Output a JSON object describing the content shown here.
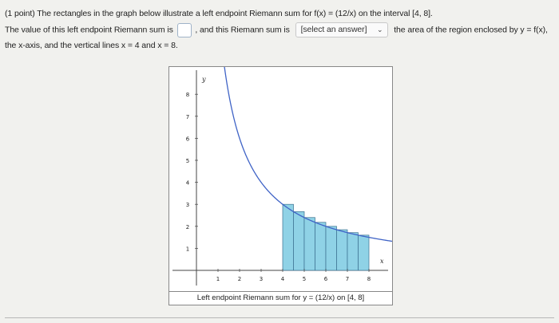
{
  "problem": {
    "line1": "(1 point) The rectangles in the graph below illustrate a left endpoint Riemann sum for f(x) = (12/x) on the interval [4, 8].",
    "line2a": "The value of this left endpoint Riemann sum is",
    "line2b": ", and this Riemann sum is",
    "select_value": "[select an answer]",
    "line2c": "the area of the region enclosed by y = f(x),",
    "line3": "the x-axis, and the vertical lines x = 4 and x = 8."
  },
  "graph": {
    "y_axis_label": "y",
    "x_axis_label": "x",
    "caption": "Left endpoint Riemann sum for y = (12/x) on [4, 8]",
    "curve_color": "#3f63c6",
    "rect_fill": "#8fd2e6",
    "rect_stroke": "#3a6f8f"
  },
  "chart_data": {
    "type": "area",
    "function": "12/x",
    "interval": [
      4,
      8
    ],
    "xlim": [
      0,
      9.5
    ],
    "ylim": [
      0,
      9
    ],
    "x_ticks": [
      "1",
      "2",
      "3",
      "4",
      "5",
      "6",
      "7",
      "8"
    ],
    "y_ticks": [
      "1",
      "2",
      "3",
      "4",
      "5",
      "6",
      "7",
      "8"
    ],
    "rectangles": [
      {
        "x0": 4.0,
        "x1": 4.5,
        "height": 3.0
      },
      {
        "x0": 4.5,
        "x1": 5.0,
        "height": 2.667
      },
      {
        "x0": 5.0,
        "x1": 5.5,
        "height": 2.4
      },
      {
        "x0": 5.5,
        "x1": 6.0,
        "height": 2.182
      },
      {
        "x0": 6.0,
        "x1": 6.5,
        "height": 2.0
      },
      {
        "x0": 6.5,
        "x1": 7.0,
        "height": 1.846
      },
      {
        "x0": 7.0,
        "x1": 7.5,
        "height": 1.714
      },
      {
        "x0": 7.5,
        "x1": 8.0,
        "height": 1.6
      }
    ]
  }
}
